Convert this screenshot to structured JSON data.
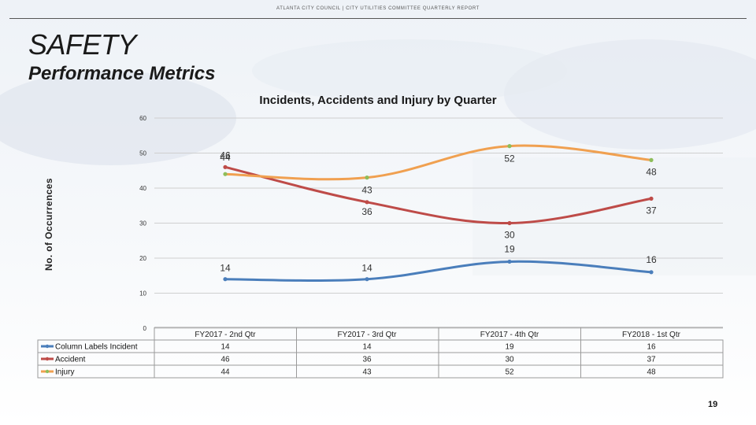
{
  "header": {
    "text": "ATLANTA CITY COUNCIL  |  CITY UTILITIES COMMITTEE QUARTERLY REPORT"
  },
  "slide": {
    "title": "SAFETY",
    "subtitle": "Performance Metrics",
    "page_number": "19"
  },
  "colors": {
    "incident": "#4a7ebb",
    "accident": "#be4b48",
    "injury": "#f0a050",
    "injury_marker": "#8ebd5a"
  },
  "chart_data": {
    "type": "line",
    "title": "Incidents, Accidents and Injury by Quarter",
    "ylabel": "No. of Occurrences",
    "xlabel": "",
    "ylim": [
      0,
      60
    ],
    "yticks": [
      "0",
      "10",
      "20",
      "30",
      "40",
      "50",
      "60"
    ],
    "categories": [
      "FY2017 - 2nd Qtr",
      "FY2017 - 3rd Qtr",
      "FY2017 - 4th Qtr",
      "FY2018 - 1st Qtr"
    ],
    "legend_header": "Column Labels",
    "series": [
      {
        "name": "Incident",
        "values": [
          14,
          14,
          19,
          16
        ]
      },
      {
        "name": "Accident",
        "values": [
          46,
          36,
          30,
          37
        ]
      },
      {
        "name": "Injury",
        "values": [
          44,
          43,
          52,
          48
        ]
      }
    ],
    "grid": true
  }
}
